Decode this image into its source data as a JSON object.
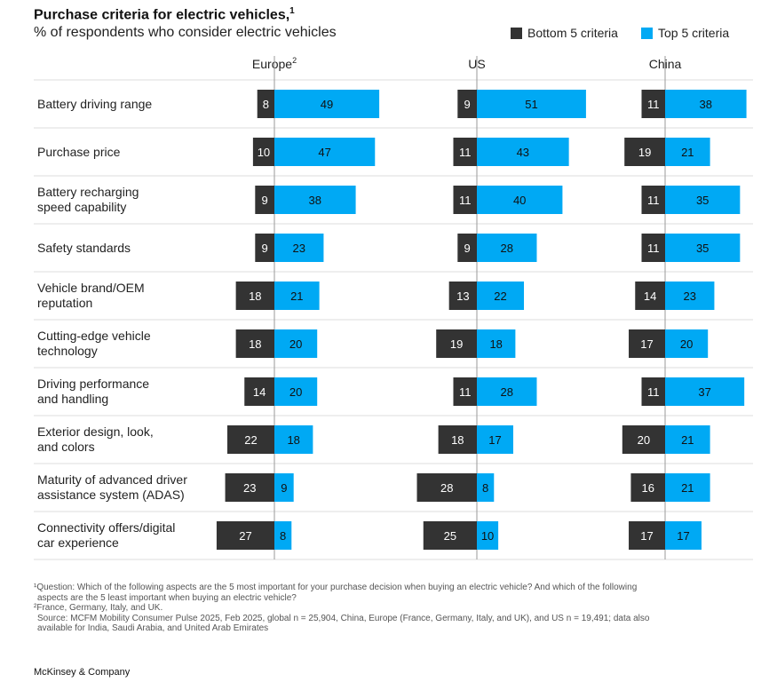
{
  "header": {
    "title": "Purchase criteria for electric vehicles,",
    "title_sup": "1",
    "subtitle": "% of respondents who consider electric vehicles"
  },
  "chart_data": {
    "type": "bar",
    "orientation": "horizontal-diverging",
    "title": "Purchase criteria for electric vehicles",
    "subtitle": "% of respondents who consider electric vehicles",
    "legend": [
      {
        "name": "Bottom 5 criteria",
        "color": "#333333"
      },
      {
        "name": "Top 5 criteria",
        "color": "#00A9F4"
      }
    ],
    "categories": [
      [
        "Battery driving range"
      ],
      [
        "Purchase price"
      ],
      [
        "Battery recharging",
        "speed capability"
      ],
      [
        "Safety standards"
      ],
      [
        "Vehicle brand/OEM",
        "reputation"
      ],
      [
        "Cutting-edge vehicle",
        "technology"
      ],
      [
        "Driving performance",
        "and handling"
      ],
      [
        "Exterior design, look,",
        "and colors"
      ],
      [
        "Maturity of advanced driver",
        "assistance system (ADAS)"
      ],
      [
        "Connectivity offers/digital",
        "car experience"
      ]
    ],
    "panels": [
      {
        "name": "Europe",
        "name_sup": "2",
        "bottom5": [
          8,
          10,
          9,
          9,
          18,
          18,
          14,
          22,
          23,
          27
        ],
        "top5": [
          49,
          47,
          38,
          23,
          21,
          20,
          20,
          18,
          9,
          8
        ]
      },
      {
        "name": "US",
        "name_sup": "",
        "bottom5": [
          9,
          11,
          11,
          9,
          13,
          19,
          11,
          18,
          28,
          25
        ],
        "top5": [
          51,
          43,
          40,
          28,
          22,
          18,
          28,
          17,
          8,
          10
        ]
      },
      {
        "name": "China",
        "name_sup": "",
        "bottom5": [
          11,
          19,
          11,
          11,
          14,
          17,
          11,
          20,
          16,
          17
        ],
        "top5": [
          38,
          21,
          35,
          35,
          23,
          20,
          37,
          21,
          21,
          17
        ]
      }
    ]
  },
  "colors": {
    "bottom": "#333333",
    "top": "#00A9F4",
    "grid": "#dddddd",
    "axis": "#999999"
  },
  "footnotes": {
    "fn1": "¹Question: Which of the following aspects are the 5 most important for your purchase decision when buying an electric vehicle? And which of the following",
    "fn1b": "aspects are the 5 least important when buying an electric vehicle?",
    "fn2": "²France, Germany, Italy, and UK.",
    "source": "Source: MCFM Mobility Consumer Pulse 2025, Feb 2025, global n = 25,904, China, Europe (France, Germany, Italy, and UK), and US n = 19,491; data also",
    "source_b": "available for India, Saudi Arabia, and United Arab Emirates"
  },
  "brand": "McKinsey & Company"
}
